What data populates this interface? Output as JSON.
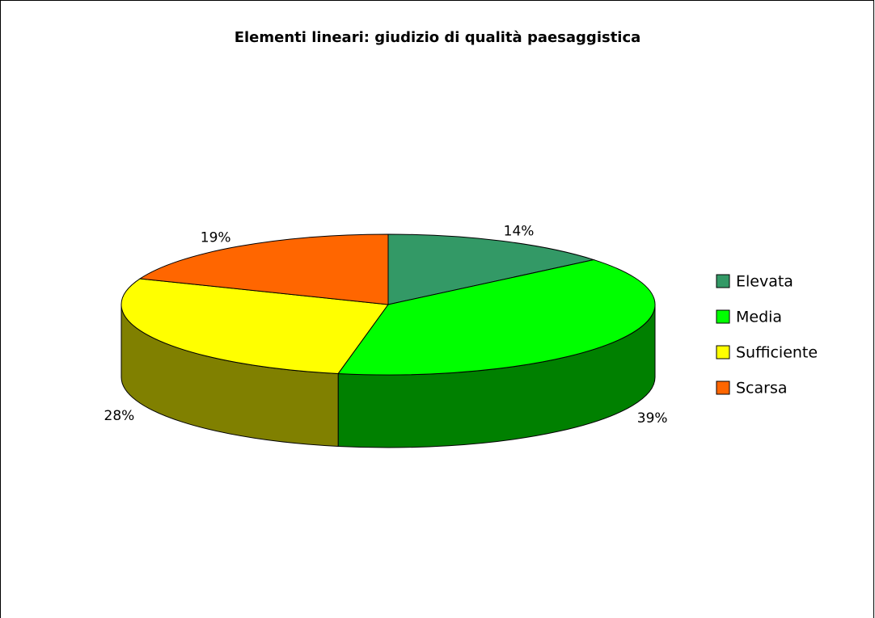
{
  "chart_data": {
    "type": "pie3d",
    "title": "Elementi lineari: giudizio di qualità paesaggistica",
    "categories": [
      "Elevata",
      "Media",
      "Sufficiente",
      "Scarsa"
    ],
    "values": [
      14,
      39,
      28,
      19
    ],
    "value_labels": [
      "14%",
      "39%",
      "28%",
      "19%"
    ],
    "colors": [
      "#339966",
      "#00ff00",
      "#ffff00",
      "#ff6600"
    ],
    "legend": "right"
  }
}
